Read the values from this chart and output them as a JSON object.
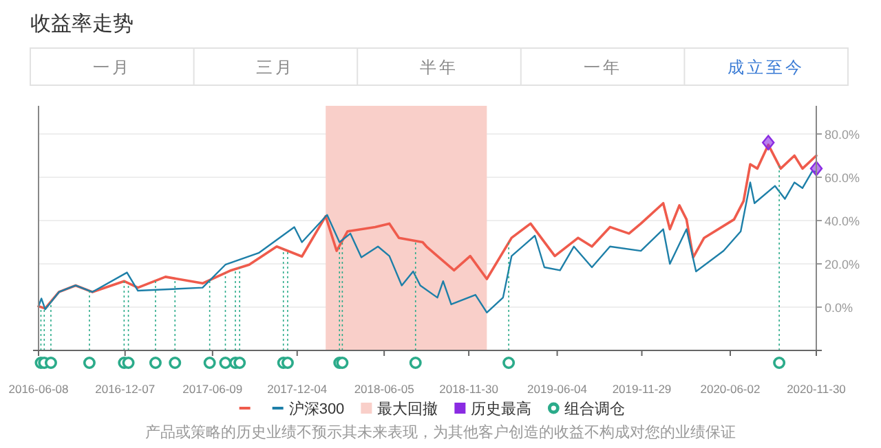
{
  "chart_data": {
    "type": "line",
    "title": "收益率走势",
    "annotations": [
      "一月",
      "三月",
      "半年",
      "一年",
      "成立至今",
      "产品或策略的历史业绩不预示其未来表现，为其他客户创造的收益不构成对您的业绩保证"
    ],
    "xlim": [
      "2016-06-08",
      "2020-11-30"
    ],
    "xticks": [
      "2016-06-08",
      "2016-12-07",
      "2017-06-09",
      "2017-12-04",
      "2018-06-05",
      "2018-11-30",
      "2019-06-04",
      "2019-11-29",
      "2020-06-02",
      "2020-11-30"
    ],
    "ylim": [
      -20,
      93
    ],
    "yticks": [
      {
        "value": 0,
        "label": "0.0%"
      },
      {
        "value": 20,
        "label": "20.0%"
      },
      {
        "value": 40,
        "label": "40.0%"
      },
      {
        "value": 60,
        "label": "60.0%"
      },
      {
        "value": 80,
        "label": "80.0%"
      }
    ],
    "grid": "y",
    "legend": "bottom",
    "line_style": "solid",
    "bands": [
      {
        "axis": "x",
        "from": "2018-02-02",
        "to": "2019-01-07",
        "label": "最大回撤",
        "color": "#f9cfc9"
      }
    ],
    "ref_lines": [
      {
        "axis": "x",
        "value": "2016-06-13",
        "label": "组合调仓",
        "color": "#2bab8a",
        "line_style": "dotted"
      },
      {
        "axis": "x",
        "value": "2016-06-20",
        "color": "#2bab8a",
        "line_style": "dotted"
      },
      {
        "axis": "x",
        "value": "2016-07-04",
        "color": "#2bab8a",
        "line_style": "dotted"
      },
      {
        "axis": "x",
        "value": "2016-09-23",
        "color": "#2bab8a",
        "line_style": "dotted"
      },
      {
        "axis": "x",
        "value": "2016-12-05",
        "color": "#2bab8a",
        "line_style": "dotted"
      },
      {
        "axis": "x",
        "value": "2016-12-14",
        "color": "#2bab8a",
        "line_style": "dotted"
      },
      {
        "axis": "x",
        "value": "2017-02-09",
        "color": "#2bab8a",
        "line_style": "dotted"
      },
      {
        "axis": "x",
        "value": "2017-03-22",
        "color": "#2bab8a",
        "line_style": "dotted"
      },
      {
        "axis": "x",
        "value": "2017-06-03",
        "color": "#2bab8a",
        "line_style": "dotted"
      },
      {
        "axis": "x",
        "value": "2017-07-06",
        "color": "#2bab8a",
        "line_style": "dotted"
      },
      {
        "axis": "x",
        "value": "2017-07-27",
        "color": "#2bab8a",
        "line_style": "dotted"
      },
      {
        "axis": "x",
        "value": "2017-08-05",
        "color": "#2bab8a",
        "line_style": "dotted"
      },
      {
        "axis": "x",
        "value": "2017-11-05",
        "color": "#2bab8a",
        "line_style": "dotted"
      },
      {
        "axis": "x",
        "value": "2017-11-14",
        "color": "#2bab8a",
        "line_style": "dotted"
      },
      {
        "axis": "x",
        "value": "2018-03-03",
        "color": "#2bab8a",
        "line_style": "dotted"
      },
      {
        "axis": "x",
        "value": "2018-03-09",
        "color": "#2bab8a",
        "line_style": "dotted"
      },
      {
        "axis": "x",
        "value": "2018-08-10",
        "color": "#2bab8a",
        "line_style": "dotted"
      },
      {
        "axis": "x",
        "value": "2019-02-22",
        "color": "#2bab8a",
        "line_style": "dotted"
      },
      {
        "axis": "x",
        "value": "2020-09-13",
        "color": "#2bab8a",
        "line_style": "dotted"
      }
    ],
    "series": [
      {
        "color": "#ef5b4c",
        "x": [
          "2016-06-08",
          "2016-06-22",
          "2016-07-21",
          "2016-08-25",
          "2016-09-29",
          "2016-12-05",
          "2017-01-03",
          "2017-03-02",
          "2017-05-19",
          "2017-07-18",
          "2017-08-25",
          "2017-10-22",
          "2017-12-14",
          "2018-02-02",
          "2018-02-25",
          "2018-03-20",
          "2018-05-17",
          "2018-06-16",
          "2018-07-06",
          "2018-08-25",
          "2018-09-02",
          "2018-09-25",
          "2018-10-30",
          "2018-12-03",
          "2019-01-07",
          "2019-02-28",
          "2019-04-09",
          "2019-05-30",
          "2019-07-18",
          "2019-08-16",
          "2019-09-23",
          "2019-11-02",
          "2019-11-27",
          "2020-01-13",
          "2020-01-27",
          "2020-02-16",
          "2020-03-02",
          "2020-03-16",
          "2020-04-08",
          "2020-06-10",
          "2020-06-30",
          "2020-07-14",
          "2020-07-29",
          "2020-08-21",
          "2020-09-16",
          "2020-10-15",
          "2020-11-01",
          "2020-11-30"
        ],
        "values": [
          0.4,
          -0.6,
          7,
          10,
          7,
          12,
          9,
          14,
          11,
          17,
          19.6,
          28,
          23.4,
          42,
          26,
          35,
          37,
          38.6,
          32,
          30,
          28,
          23.6,
          17,
          23.6,
          13,
          32,
          38.6,
          23.6,
          32,
          28,
          37,
          34,
          38.6,
          48,
          36,
          47,
          40.5,
          23,
          32,
          40.5,
          49,
          66,
          64,
          75,
          64,
          70,
          64,
          70
        ]
      },
      {
        "name": "沪深300",
        "color": "#1d7fa8",
        "x": [
          "2016-06-08",
          "2016-06-14",
          "2016-06-22",
          "2016-07-21",
          "2016-08-25",
          "2016-09-29",
          "2016-12-11",
          "2017-01-03",
          "2017-05-19",
          "2017-07-06",
          "2017-09-14",
          "2017-11-28",
          "2017-12-14",
          "2018-02-05",
          "2018-03-03",
          "2018-03-26",
          "2018-04-18",
          "2018-05-23",
          "2018-06-16",
          "2018-07-12",
          "2018-08-05",
          "2018-08-20",
          "2018-09-25",
          "2018-10-07",
          "2018-10-24",
          "2018-12-14",
          "2019-01-07",
          "2019-02-10",
          "2019-02-28",
          "2019-04-18",
          "2019-05-08",
          "2019-06-10",
          "2019-07-09",
          "2019-08-16",
          "2019-09-23",
          "2019-11-27",
          "2020-01-13",
          "2020-01-27",
          "2020-03-02",
          "2020-03-22",
          "2020-05-19",
          "2020-06-24",
          "2020-07-14",
          "2020-07-23",
          "2020-09-04",
          "2020-09-25",
          "2020-10-15",
          "2020-11-01",
          "2020-11-21",
          "2020-11-30"
        ],
        "values": [
          0.4,
          4,
          -1,
          7,
          10,
          7,
          16,
          7.6,
          9,
          19.6,
          25,
          37,
          30,
          42.6,
          30,
          34,
          23,
          28,
          23.6,
          10,
          16.5,
          10,
          4.4,
          12,
          1.3,
          5.7,
          -2.5,
          4.4,
          23.6,
          33,
          18.4,
          17,
          28,
          18.4,
          28,
          26,
          36,
          20,
          36,
          16.5,
          26,
          35,
          57.6,
          48,
          56,
          50,
          57.6,
          55,
          62.6,
          62.6
        ]
      },
      {
        "name": "历史最高",
        "type": "scatter",
        "marker": "diamond",
        "color": "#8a2be2",
        "x": [
          "2020-08-21",
          "2020-11-30"
        ],
        "values": [
          76,
          64
        ]
      }
    ]
  }
}
